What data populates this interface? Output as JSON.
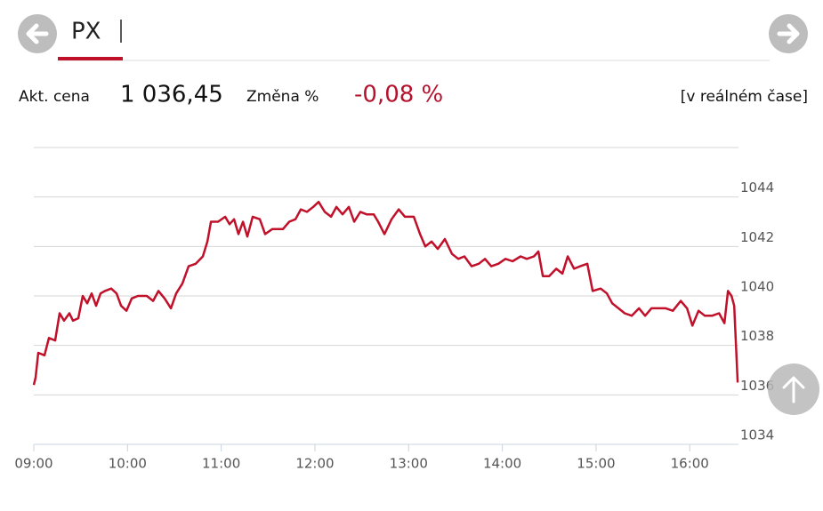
{
  "header": {
    "title": "PX",
    "price_label": "Akt. cena",
    "price": "1 036,45",
    "change_label": "Změna %",
    "change": "-0,08 %",
    "realtime": "[v reálném čase]"
  },
  "chart_data": {
    "type": "line",
    "color": "#c0102a",
    "grid": true,
    "xlim": [
      9,
      16.52
    ],
    "ylim": [
      1034,
      1046
    ],
    "xticks": [
      {
        "value": 9,
        "label": "09:00"
      },
      {
        "value": 10,
        "label": "10:00"
      },
      {
        "value": 11,
        "label": "11:00"
      },
      {
        "value": 12,
        "label": "12:00"
      },
      {
        "value": 13,
        "label": "13:00"
      },
      {
        "value": 14,
        "label": "14:00"
      },
      {
        "value": 15,
        "label": "15:00"
      },
      {
        "value": 16,
        "label": "16:00"
      }
    ],
    "yticks": [
      1034,
      1036,
      1038,
      1040,
      1042,
      1044
    ],
    "x": [
      9.0,
      9.019,
      9.047,
      9.114,
      9.161,
      9.228,
      9.275,
      9.323,
      9.38,
      9.418,
      9.475,
      9.522,
      9.57,
      9.617,
      9.665,
      9.712,
      9.76,
      9.826,
      9.883,
      9.931,
      9.988,
      10.045,
      10.111,
      10.206,
      10.273,
      10.33,
      10.396,
      10.463,
      10.519,
      10.586,
      10.652,
      10.728,
      10.804,
      10.852,
      10.89,
      10.966,
      11.042,
      11.089,
      11.137,
      11.184,
      11.232,
      11.279,
      11.336,
      11.412,
      11.469,
      11.545,
      11.659,
      11.726,
      11.792,
      11.849,
      11.915,
      11.982,
      12.039,
      12.105,
      12.172,
      12.229,
      12.295,
      12.362,
      12.419,
      12.485,
      12.552,
      12.628,
      12.675,
      12.742,
      12.818,
      12.894,
      12.96,
      13.055,
      13.122,
      13.178,
      13.245,
      13.311,
      13.387,
      13.463,
      13.53,
      13.596,
      13.672,
      13.748,
      13.815,
      13.881,
      13.957,
      14.033,
      14.109,
      14.195,
      14.261,
      14.337,
      14.385,
      14.432,
      14.499,
      14.575,
      14.641,
      14.698,
      14.765,
      14.831,
      14.907,
      14.964,
      15.049,
      15.116,
      15.173,
      15.239,
      15.306,
      15.382,
      15.458,
      15.524,
      15.591,
      15.667,
      15.743,
      15.819,
      15.904,
      15.971,
      16.028,
      16.094,
      16.161,
      16.237,
      16.313,
      16.37,
      16.408,
      16.446,
      16.474,
      16.511
    ],
    "values": [
      1036.4,
      1036.7,
      1037.7,
      1037.6,
      1038.3,
      1038.2,
      1039.3,
      1039.0,
      1039.3,
      1039.0,
      1039.1,
      1040.0,
      1039.7,
      1040.1,
      1039.6,
      1040.1,
      1040.2,
      1040.3,
      1040.1,
      1039.6,
      1039.4,
      1039.9,
      1040.0,
      1040.0,
      1039.8,
      1040.2,
      1039.9,
      1039.5,
      1040.1,
      1040.5,
      1041.2,
      1041.3,
      1041.6,
      1042.2,
      1043.0,
      1043.0,
      1043.2,
      1042.9,
      1043.1,
      1042.5,
      1043.0,
      1042.4,
      1043.2,
      1043.1,
      1042.5,
      1042.7,
      1042.7,
      1043.0,
      1043.1,
      1043.5,
      1043.4,
      1043.6,
      1043.8,
      1043.4,
      1043.2,
      1043.6,
      1043.3,
      1043.6,
      1043.0,
      1043.4,
      1043.3,
      1043.3,
      1043.0,
      1042.5,
      1043.1,
      1043.5,
      1043.2,
      1043.2,
      1042.5,
      1042.0,
      1042.2,
      1041.9,
      1042.3,
      1041.7,
      1041.5,
      1041.6,
      1041.2,
      1041.3,
      1041.5,
      1041.2,
      1041.3,
      1041.5,
      1041.4,
      1041.6,
      1041.5,
      1041.6,
      1041.8,
      1040.8,
      1040.8,
      1041.1,
      1040.9,
      1041.6,
      1041.1,
      1041.2,
      1041.3,
      1040.2,
      1040.3,
      1040.1,
      1039.7,
      1039.5,
      1039.3,
      1039.2,
      1039.5,
      1039.2,
      1039.5,
      1039.5,
      1039.5,
      1039.4,
      1039.8,
      1039.5,
      1038.8,
      1039.4,
      1039.2,
      1039.2,
      1039.3,
      1038.9,
      1040.2,
      1040.0,
      1039.6,
      1036.5
    ]
  }
}
